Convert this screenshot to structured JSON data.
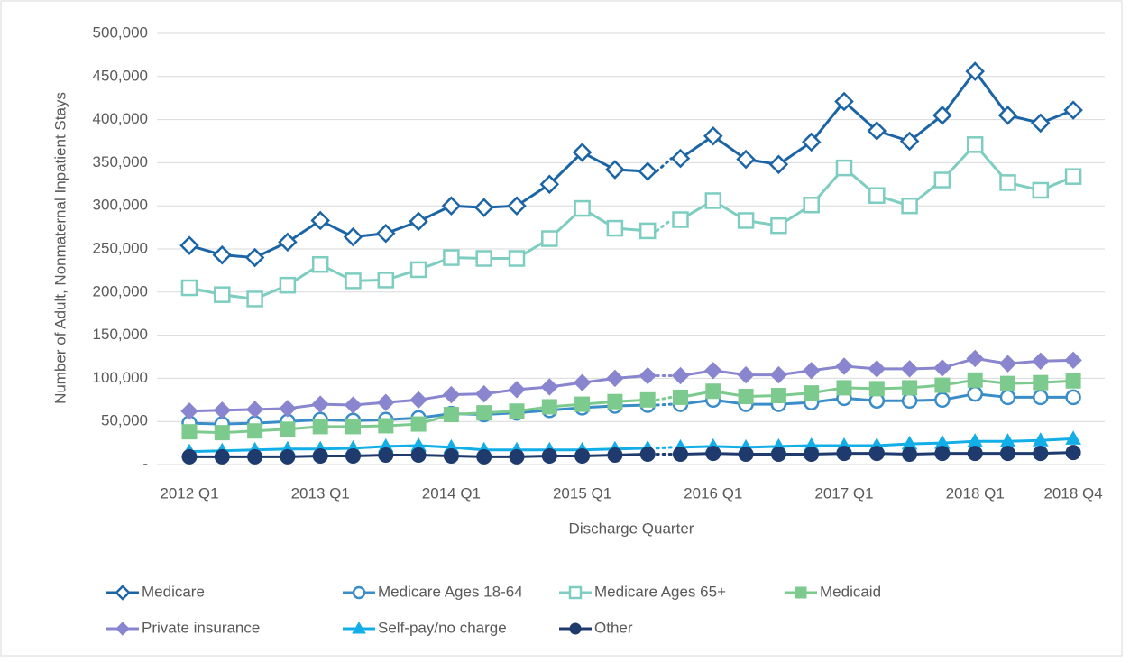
{
  "chart_data": {
    "type": "line",
    "y_label": "Number of Adult, Nonmaternal Inpatient Stays",
    "x_label": "Discharge Quarter",
    "categories": [
      "2012 Q1",
      null,
      null,
      null,
      "2013 Q1",
      null,
      null,
      null,
      "2014 Q1",
      null,
      null,
      null,
      "2015 Q1",
      null,
      null,
      null,
      "2016 Q1",
      null,
      null,
      null,
      "2017 Q1",
      null,
      null,
      null,
      "2018 Q1",
      null,
      null,
      "2018 Q4"
    ],
    "ylim": [
      0,
      500000
    ],
    "yticks": [
      {
        "value": 0,
        "label": "-"
      },
      {
        "value": 50000,
        "label": "50,000"
      },
      {
        "value": 100000,
        "label": "100,000"
      },
      {
        "value": 150000,
        "label": "150,000"
      },
      {
        "value": 200000,
        "label": "200,000"
      },
      {
        "value": 250000,
        "label": "250,000"
      },
      {
        "value": 300000,
        "label": "300,000"
      },
      {
        "value": 350000,
        "label": "350,000"
      },
      {
        "value": 400000,
        "label": "400,000"
      },
      {
        "value": 450000,
        "label": "450,000"
      },
      {
        "value": 500000,
        "label": "500,000"
      }
    ],
    "grid": true,
    "legend": "bottom",
    "series": [
      {
        "name": "Medicare",
        "color": "#1b65a6",
        "marker": "diamond",
        "filled": false,
        "values": [
          254000,
          243000,
          240000,
          258000,
          283000,
          264000,
          268000,
          282000,
          300000,
          298000,
          300000,
          325000,
          362000,
          342000,
          340000,
          355000,
          381000,
          354000,
          348000,
          374000,
          421000,
          387000,
          375000,
          405000,
          456000,
          405000,
          396000,
          411000
        ]
      },
      {
        "name": "Medicare Ages 18-64",
        "color": "#3a8dc8",
        "marker": "circle",
        "filled": false,
        "values": [
          48000,
          47000,
          48000,
          50000,
          52000,
          51000,
          52000,
          54000,
          59000,
          58000,
          60000,
          63000,
          66000,
          68000,
          69000,
          70000,
          75000,
          70000,
          70000,
          72000,
          77000,
          74000,
          74000,
          75000,
          82000,
          78000,
          78000,
          78000
        ]
      },
      {
        "name": "Medicare Ages 65+",
        "color": "#7ecdc1",
        "marker": "square",
        "filled": false,
        "values": [
          205000,
          197000,
          192000,
          208000,
          232000,
          213000,
          214000,
          226000,
          240000,
          239000,
          239000,
          262000,
          297000,
          274000,
          271000,
          284000,
          306000,
          283000,
          277000,
          301000,
          344000,
          312000,
          300000,
          330000,
          371000,
          327000,
          318000,
          334000
        ]
      },
      {
        "name": "Medicaid",
        "color": "#7cca8e",
        "marker": "square",
        "filled": true,
        "values": [
          38000,
          37000,
          39000,
          41000,
          44000,
          44000,
          45000,
          47000,
          58000,
          60000,
          62000,
          67000,
          70000,
          73000,
          75000,
          78000,
          85000,
          79000,
          80000,
          83000,
          89000,
          88000,
          89000,
          92000,
          98000,
          94000,
          95000,
          97000
        ]
      },
      {
        "name": "Private insurance",
        "color": "#8985cf",
        "marker": "diamond",
        "filled": true,
        "values": [
          62000,
          63000,
          64000,
          65000,
          70000,
          69000,
          72000,
          75000,
          81000,
          82000,
          87000,
          90000,
          95000,
          100000,
          103000,
          103000,
          109000,
          104000,
          104000,
          109000,
          114000,
          111000,
          111000,
          112000,
          123000,
          117000,
          120000,
          121000
        ]
      },
      {
        "name": "Self-pay/no charge",
        "color": "#12aee8",
        "marker": "triangle",
        "filled": true,
        "values": [
          15000,
          16000,
          17000,
          18000,
          18000,
          19000,
          21000,
          22000,
          20000,
          17000,
          17000,
          17000,
          17000,
          18000,
          19000,
          20000,
          21000,
          20000,
          21000,
          22000,
          22000,
          22000,
          24000,
          25000,
          27000,
          27000,
          28000,
          30000
        ]
      },
      {
        "name": "Other",
        "color": "#1f3b6e",
        "marker": "circle",
        "filled": true,
        "values": [
          9000,
          9000,
          9000,
          9000,
          10000,
          10000,
          11000,
          11000,
          10000,
          9000,
          9000,
          10000,
          10000,
          11000,
          12000,
          12000,
          13000,
          12000,
          12000,
          12000,
          13000,
          13000,
          12000,
          13000,
          13000,
          13000,
          13000,
          14000
        ]
      }
    ]
  }
}
